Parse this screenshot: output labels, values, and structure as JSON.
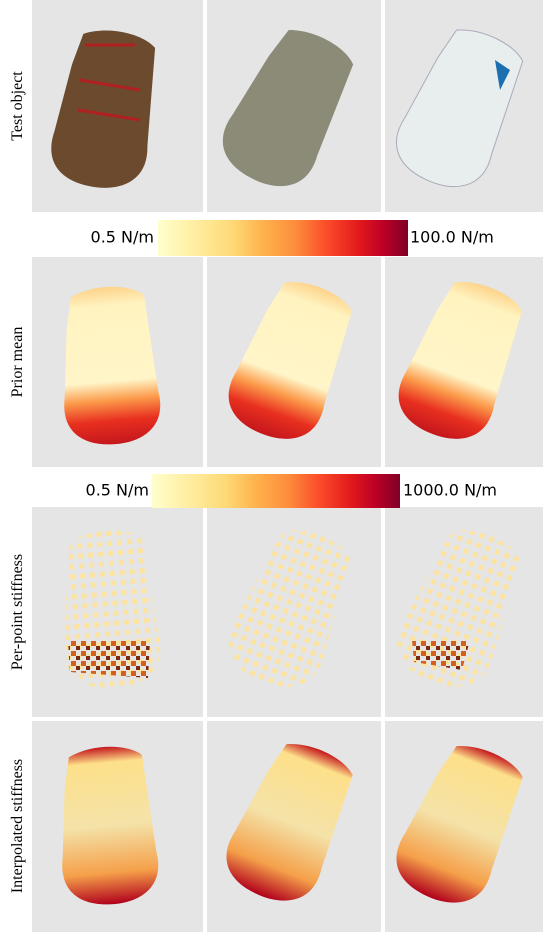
{
  "rows": [
    {
      "label": "Test object"
    },
    {
      "label": "Prior mean"
    },
    {
      "label": "Per-point stiffness"
    },
    {
      "label": "Interpolated stiffness"
    }
  ],
  "colorbars": [
    {
      "min_label": "0.5 N/m",
      "max_label": "100.0 N/m"
    },
    {
      "min_label": "0.5 N/m",
      "max_label": "1000.0 N/m"
    }
  ]
}
